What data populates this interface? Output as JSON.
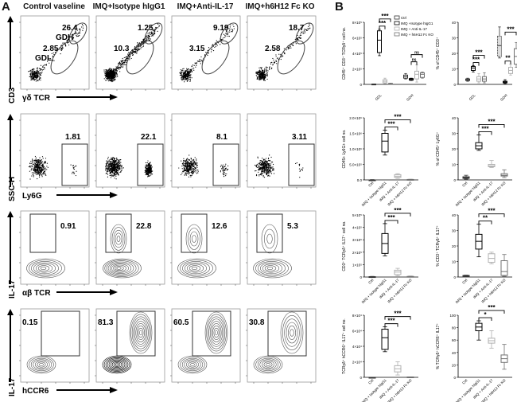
{
  "panel_a": {
    "letter": "A",
    "columns": [
      "Control vaseline",
      "IMQ+Isotype hIgG1",
      "IMQ+Anti-IL-17",
      "IMQ+h6H12 Fc KO"
    ],
    "rows": [
      {
        "y_label": "CD3",
        "x_label": "γδ TCR",
        "gate_type": "ellipses",
        "gate_labels": [
          "GDH",
          "GDL"
        ],
        "values": [
          [
            "26.4",
            "2.85"
          ],
          [
            "1.25",
            "10.3"
          ],
          [
            "9.19",
            "3.15"
          ],
          [
            "18.7",
            "2.58"
          ]
        ]
      },
      {
        "y_label": "SSC-H",
        "x_label": "Ly6G",
        "gate_type": "rect-bottom-right",
        "values": [
          [
            "1.81"
          ],
          [
            "22.1"
          ],
          [
            "8.1"
          ],
          [
            "3.11"
          ]
        ]
      },
      {
        "y_label": "IL-17",
        "x_label": "αβ TCR",
        "gate_type": "rect-top-left",
        "values": [
          [
            "0.91"
          ],
          [
            "22.8"
          ],
          [
            "12.6"
          ],
          [
            "5.3"
          ]
        ]
      },
      {
        "y_label": "IL-17",
        "x_label": "hCCR6",
        "gate_type": "rect-top",
        "values": [
          [
            "0.15"
          ],
          [
            "81.3"
          ],
          [
            "60.5"
          ],
          [
            "30.8"
          ]
        ]
      }
    ]
  },
  "panel_b": {
    "letter": "B"
  },
  "colors": {
    "ctrl": "#333333",
    "isotype": "#000000",
    "anti_il17": "#b0b0b0",
    "h6h12": "#707070"
  },
  "chart_data": [
    {
      "type": "box",
      "grouped": true,
      "categories": [
        "GDL",
        "GDH"
      ],
      "legend": [
        "Ctrl",
        "IMQ +Isotype hIgG1",
        "IMQ + Anti-IL-17",
        "IMQ + h6H12 Fc KO"
      ],
      "legend_position": "top-right",
      "ylabel": "CD45⁺ CD3⁺ TCRγδ⁺ cell no.",
      "ylim": [
        0,
        8
      ],
      "yticks": [
        "0",
        "2×10⁵",
        "4×10⁵",
        "6×10⁵",
        "8×10⁵"
      ],
      "unit": "×10⁵",
      "series": [
        {
          "name": "Ctrl",
          "boxes": [
            [
              0,
              0,
              0.02,
              0.04,
              0.05
            ],
            [
              0.7,
              0.8,
              1.0,
              1.2,
              1.4
            ]
          ]
        },
        {
          "name": "IMQ +Isotype hIgG1",
          "boxes": [
            [
              3.7,
              4.1,
              5.7,
              6.9,
              7.1
            ],
            [
              0.5,
              0.55,
              0.65,
              0.75,
              0.8
            ]
          ]
        },
        {
          "name": "IMQ + Anti-IL-17",
          "boxes": [
            [
              0.1,
              0.2,
              0.4,
              0.6,
              0.8
            ],
            [
              0.3,
              0.7,
              1.3,
              1.7,
              2.5
            ]
          ]
        },
        {
          "name": "IMQ + h6H12 Fc KO",
          "boxes": [
            [
              0.05,
              0.08,
              0.1,
              0.12,
              0.15
            ],
            [
              0.8,
              0.9,
              1.3,
              1.5,
              1.6
            ]
          ]
        }
      ],
      "significance": [
        {
          "group": 0,
          "a": 1,
          "b": 2,
          "label": "***"
        },
        {
          "group": 0,
          "a": 1,
          "b": 3,
          "label": "***"
        },
        {
          "group": 1,
          "a": 1,
          "b": 2,
          "label": "ns"
        },
        {
          "group": 1,
          "a": 1,
          "b": 3,
          "label": "ns"
        }
      ]
    },
    {
      "type": "box",
      "grouped": true,
      "categories": [
        "GDL",
        "GDH"
      ],
      "ylabel": "% of CD45⁺ CD3⁺",
      "ylim": [
        0,
        40
      ],
      "yticks": [
        "0",
        "10",
        "20",
        "30",
        "40"
      ],
      "series": [
        {
          "name": "Ctrl",
          "boxes": [
            [
              2,
              2.5,
              3,
              3.5,
              4
            ],
            [
              17,
              18,
              25,
              31,
              37
            ]
          ]
        },
        {
          "name": "IMQ +Isotype hIgG1",
          "boxes": [
            [
              8,
              9,
              10.5,
              11.5,
              12
            ],
            [
              0.5,
              1,
              1.5,
              2,
              3
            ]
          ]
        },
        {
          "name": "IMQ + Anti-IL-17",
          "boxes": [
            [
              1,
              2,
              3.5,
              5,
              7
            ],
            [
              6,
              7,
              9,
              11,
              13
            ]
          ]
        },
        {
          "name": "IMQ + h6H12 Fc KO",
          "boxes": [
            [
              1,
              2,
              3.5,
              5,
              7.5
            ],
            [
              11,
              13,
              18,
              23,
              27
            ]
          ]
        }
      ],
      "significance": [
        {
          "group": 0,
          "a": 1,
          "b": 2,
          "label": "***"
        },
        {
          "group": 0,
          "a": 1,
          "b": 3,
          "label": "***"
        },
        {
          "group": 1,
          "a": 1,
          "b": 2,
          "label": "**"
        },
        {
          "group": 1,
          "a": 1,
          "b": 3,
          "label": "***"
        }
      ]
    },
    {
      "type": "box",
      "categories": [
        "Ctrl",
        "IMQ + Isotype hIgG1",
        "IMQ + Anti-IL-17",
        "IMQ + h6H12 Fc KO"
      ],
      "ylabel": "CD45+ Ly6G+ cell no.",
      "ylim": [
        0,
        20
      ],
      "yticks": [
        "0.0",
        "5.0×10⁵",
        "1.0×10⁶",
        "1.5×10⁶",
        "2.0×10⁶"
      ],
      "unit": "×10⁵",
      "boxes": [
        [
          0,
          0,
          0,
          0,
          0.1
        ],
        [
          8,
          9,
          12.5,
          15,
          16
        ],
        [
          0.5,
          0.8,
          1.2,
          1.7,
          2
        ],
        [
          0,
          0.05,
          0.1,
          0.15,
          0.2
        ]
      ],
      "significance": [
        {
          "a": 1,
          "b": 2,
          "label": "***"
        },
        {
          "a": 1,
          "b": 3,
          "label": "***"
        }
      ]
    },
    {
      "type": "box",
      "categories": [
        "Ctrl",
        "IMQ + Isotype hIgG1",
        "IMQ + Anti-IL-17",
        "IMQ + h6H12 Fc KO"
      ],
      "ylabel": "% of CD45⁺ Ly6G⁺",
      "ylim": [
        0,
        40
      ],
      "yticks": [
        "0",
        "10",
        "20",
        "30",
        "40"
      ],
      "boxes": [
        [
          0.5,
          1,
          1.5,
          2,
          3
        ],
        [
          19,
          20,
          22,
          24,
          29
        ],
        [
          8,
          8.5,
          9,
          10,
          12.5
        ],
        [
          1.5,
          2.5,
          3,
          4,
          6.5
        ]
      ],
      "significance": [
        {
          "a": 1,
          "b": 2,
          "label": "***"
        },
        {
          "a": 1,
          "b": 3,
          "label": "***"
        }
      ]
    },
    {
      "type": "box",
      "categories": [
        "Ctrl",
        "IMQ + Isotype hIgG1",
        "IMQ + Anti-IL-17",
        "IMQ + h6H12 Fc KO"
      ],
      "ylabel": "CD3⁺ TCRγδ⁺ IL17⁺ cell no.",
      "ylim": [
        0,
        5
      ],
      "yticks": [
        "0",
        "1×10⁵",
        "2×10⁵",
        "3×10⁵",
        "4×10⁵",
        "5×10⁵"
      ],
      "unit": "×10⁵",
      "boxes": [
        [
          0,
          0,
          0.02,
          0.03,
          0.05
        ],
        [
          1.7,
          1.9,
          2.7,
          3.5,
          4.3
        ],
        [
          0.1,
          0.2,
          0.4,
          0.55,
          0.7
        ],
        [
          0,
          0.02,
          0.03,
          0.05,
          0.07
        ]
      ],
      "significance": [
        {
          "a": 1,
          "b": 2,
          "label": "***"
        },
        {
          "a": 1,
          "b": 3,
          "label": "***"
        }
      ]
    },
    {
      "type": "box",
      "categories": [
        "Ctrl",
        "IMQ + Isotype hIgG1",
        "IMQ + Anti-IL-17",
        "IMQ + h6H12 Fc KO"
      ],
      "ylabel": "% CD3⁺ TCRγδ⁺ IL17⁺",
      "ylim": [
        0,
        40
      ],
      "yticks": [
        "0",
        "10",
        "20",
        "30",
        "40"
      ],
      "boxes": [
        [
          0.2,
          0.5,
          0.8,
          1,
          1.2
        ],
        [
          13,
          18,
          23,
          27.5,
          34
        ],
        [
          8.5,
          9.5,
          12,
          15,
          16
        ],
        [
          0.5,
          1,
          3.5,
          10.5,
          14.5
        ]
      ],
      "significance": [
        {
          "a": 1,
          "b": 2,
          "label": "**"
        },
        {
          "a": 1,
          "b": 3,
          "label": "***"
        }
      ]
    },
    {
      "type": "box",
      "categories": [
        "Ctrl",
        "IMQ + Isotype hIgG1",
        "IMQ + Anti-IL-17",
        "IMQ + h6H12 Fc KO"
      ],
      "ylabel": "TCRγδ⁺ hCCR6⁺ IL17⁺ cell no.",
      "ylim": [
        0,
        8
      ],
      "yticks": [
        "0",
        "2×10⁴",
        "4×10⁴",
        "6×10⁴",
        "8×10⁴"
      ],
      "unit": "×10⁴",
      "boxes": [
        [
          0,
          0,
          0,
          0,
          0
        ],
        [
          3.3,
          3.6,
          5.1,
          6.2,
          6.5
        ],
        [
          0.3,
          0.7,
          1.1,
          1.5,
          2
        ],
        [
          0,
          0.02,
          0.03,
          0.05,
          0.06
        ]
      ],
      "significance": [
        {
          "a": 1,
          "b": 2,
          "label": "***"
        },
        {
          "a": 1,
          "b": 3,
          "label": "***"
        }
      ]
    },
    {
      "type": "box",
      "categories": [
        "Ctrl",
        "IMQ + Isotype hIgG1",
        "IMQ + Anti-IL-17",
        "IMQ + h6H12 Fc KO"
      ],
      "ylabel": "% TCRγδ⁺ hCCR6⁺ IL17⁺",
      "ylim": [
        0,
        100
      ],
      "yticks": [
        "0",
        "20",
        "40",
        "60",
        "80",
        "100"
      ],
      "boxes": [
        null,
        [
          60,
          75,
          81,
          87,
          91
        ],
        [
          47,
          55,
          59,
          63,
          75
        ],
        [
          13,
          24,
          30,
          36,
          53
        ]
      ],
      "significance": [
        {
          "a": 1,
          "b": 2,
          "label": "*"
        },
        {
          "a": 1,
          "b": 3,
          "label": "***"
        }
      ]
    }
  ]
}
